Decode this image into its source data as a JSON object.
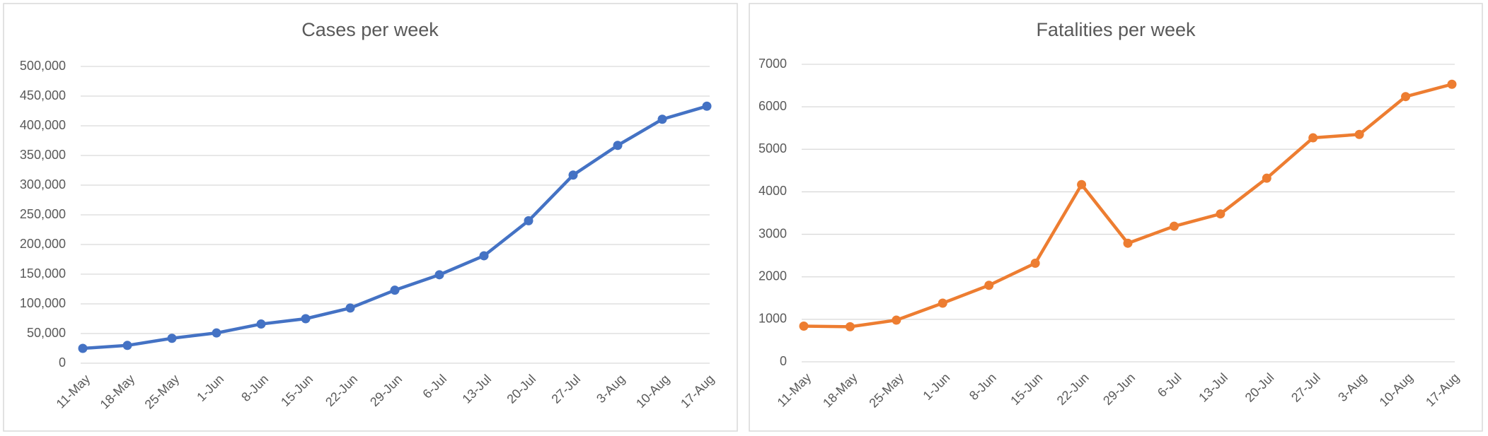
{
  "chart_data": [
    {
      "type": "line",
      "title": "Cases per week",
      "categories": [
        "11-May",
        "18-May",
        "25-May",
        "1-Jun",
        "8-Jun",
        "15-Jun",
        "22-Jun",
        "29-Jun",
        "6-Jul",
        "13-Jul",
        "20-Jul",
        "27-Jul",
        "3-Aug",
        "10-Aug",
        "17-Aug"
      ],
      "series": [
        {
          "name": "Cases",
          "color": "#4472c4",
          "values": [
            25000,
            30000,
            42000,
            51000,
            66000,
            75000,
            93000,
            123000,
            149000,
            181000,
            240000,
            317000,
            367000,
            411000,
            433000
          ]
        }
      ],
      "ylim": [
        0,
        500000
      ],
      "yticks": [
        0,
        {
          "value": 50000,
          "label": "50,000"
        },
        {
          "value": 100000,
          "label": "100,000"
        },
        {
          "value": 150000,
          "label": "150,000"
        },
        {
          "value": 200000,
          "label": "200,000"
        },
        {
          "value": 250000,
          "label": "250,000"
        },
        {
          "value": 300000,
          "label": "300,000"
        },
        {
          "value": 350000,
          "label": "350,000"
        },
        {
          "value": 400000,
          "label": "400,000"
        },
        {
          "value": 450000,
          "label": "450,000"
        },
        {
          "value": 500000,
          "label": "500,000"
        }
      ],
      "grid": true
    },
    {
      "type": "line",
      "title": "Fatalities per week",
      "categories": [
        "11-May",
        "18-May",
        "25-May",
        "1-Jun",
        "8-Jun",
        "15-Jun",
        "22-Jun",
        "29-Jun",
        "6-Jul",
        "13-Jul",
        "20-Jul",
        "27-Jul",
        "3-Aug",
        "10-Aug",
        "17-Aug"
      ],
      "series": [
        {
          "name": "Fatalities",
          "color": "#ed7d31",
          "values": [
            840,
            825,
            980,
            1380,
            1800,
            2320,
            4170,
            2790,
            3190,
            3480,
            4320,
            5270,
            5350,
            6240,
            6530
          ]
        }
      ],
      "ylim": [
        0,
        7000
      ],
      "yticks": [
        0,
        1000,
        2000,
        3000,
        4000,
        5000,
        6000,
        7000
      ],
      "grid": true
    }
  ]
}
